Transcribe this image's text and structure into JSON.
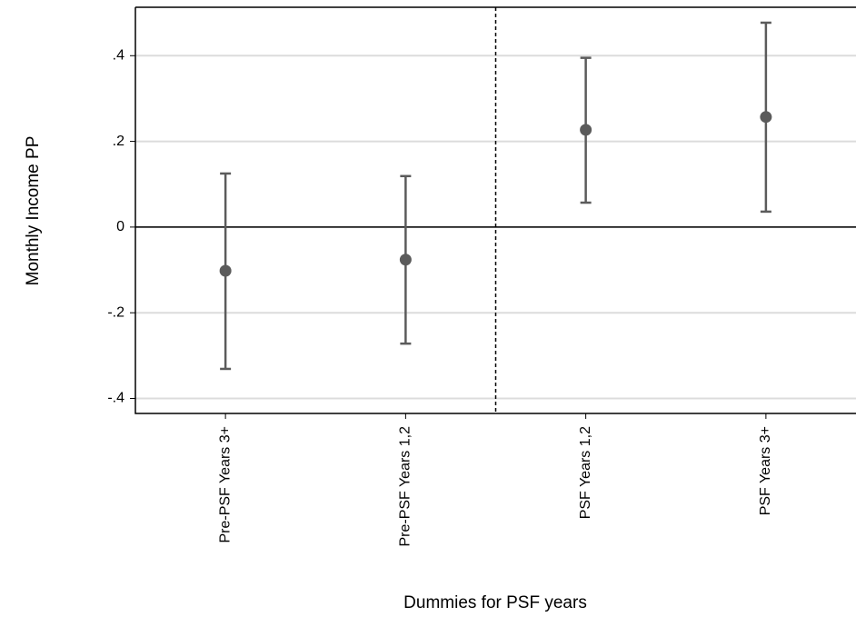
{
  "chart_data": {
    "type": "errorbar",
    "ylabel": "Monthly Income PP",
    "xlabel": "Dummies for PSF years",
    "categories": [
      "Pre-PSF Years 3+",
      "Pre-PSF Years 1,2",
      "PSF Years 1,2",
      "PSF Years 3+"
    ],
    "values": [
      -0.102,
      -0.076,
      0.227,
      0.257
    ],
    "lower": [
      -0.331,
      -0.272,
      0.057,
      0.036
    ],
    "upper": [
      0.125,
      0.119,
      0.395,
      0.477
    ],
    "color": "#5b5b5b",
    "ylim": [
      -0.435,
      0.513
    ],
    "yticks": [
      {
        "value": -0.4,
        "label": "-.4"
      },
      {
        "value": -0.2,
        "label": "-.2"
      },
      0,
      {
        "value": 0.2,
        "label": ".2"
      },
      {
        "value": 0.4,
        "label": ".4"
      }
    ],
    "grid": true,
    "hline": 0,
    "vline": 2.5
  }
}
